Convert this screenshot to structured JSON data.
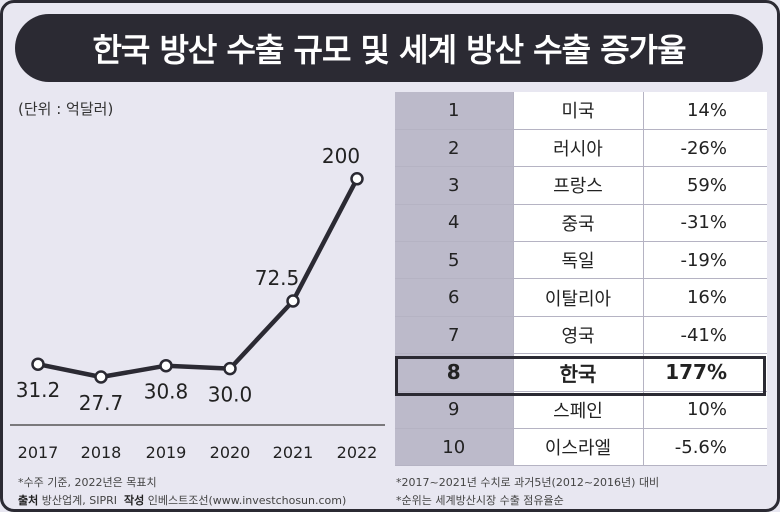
{
  "title": "한국 방산 수출 규모 및 세계 방산 수출 증가율",
  "unit_label": "(단위 : 억달러)",
  "chart_data": {
    "type": "line",
    "x": [
      "2017",
      "2018",
      "2019",
      "2020",
      "2021",
      "2022"
    ],
    "values": [
      31.2,
      27.7,
      30.8,
      30.0,
      72.5,
      200
    ],
    "value_labels": [
      "31.2",
      "27.7",
      "30.8",
      "30.0",
      "72.5",
      "200"
    ],
    "series_name": "한국 방산 수출 규모",
    "ylabel": "억달러",
    "line_color": "#2b2a33"
  },
  "table": {
    "rows": [
      {
        "rank": "1",
        "country": "미국",
        "growth": "14%"
      },
      {
        "rank": "2",
        "country": "러시아",
        "growth": "-26%"
      },
      {
        "rank": "3",
        "country": "프랑스",
        "growth": "59%"
      },
      {
        "rank": "4",
        "country": "중국",
        "growth": "-31%"
      },
      {
        "rank": "5",
        "country": "독일",
        "growth": "-19%"
      },
      {
        "rank": "6",
        "country": "이탈리아",
        "growth": "16%"
      },
      {
        "rank": "7",
        "country": "영국",
        "growth": "-41%"
      },
      {
        "rank": "8",
        "country": "한국",
        "growth": "177%",
        "highlight": true
      },
      {
        "rank": "9",
        "country": "스페인",
        "growth": "10%"
      },
      {
        "rank": "10",
        "country": "이스라엘",
        "growth": "-5.6%"
      }
    ]
  },
  "notes": {
    "left_note": "*수주 기준, 2022년은 목표치",
    "source_label": "출처",
    "source_value": "방산업계, SIPRI",
    "author_label": "작성",
    "author_value": "인베스트조선(www.investchosun.com)",
    "right_note1": "*2017~2021년 수치로 과거5년(2012~2016년) 대비",
    "right_note2": "*순위는 세계방산시장 수출 점유율순"
  }
}
